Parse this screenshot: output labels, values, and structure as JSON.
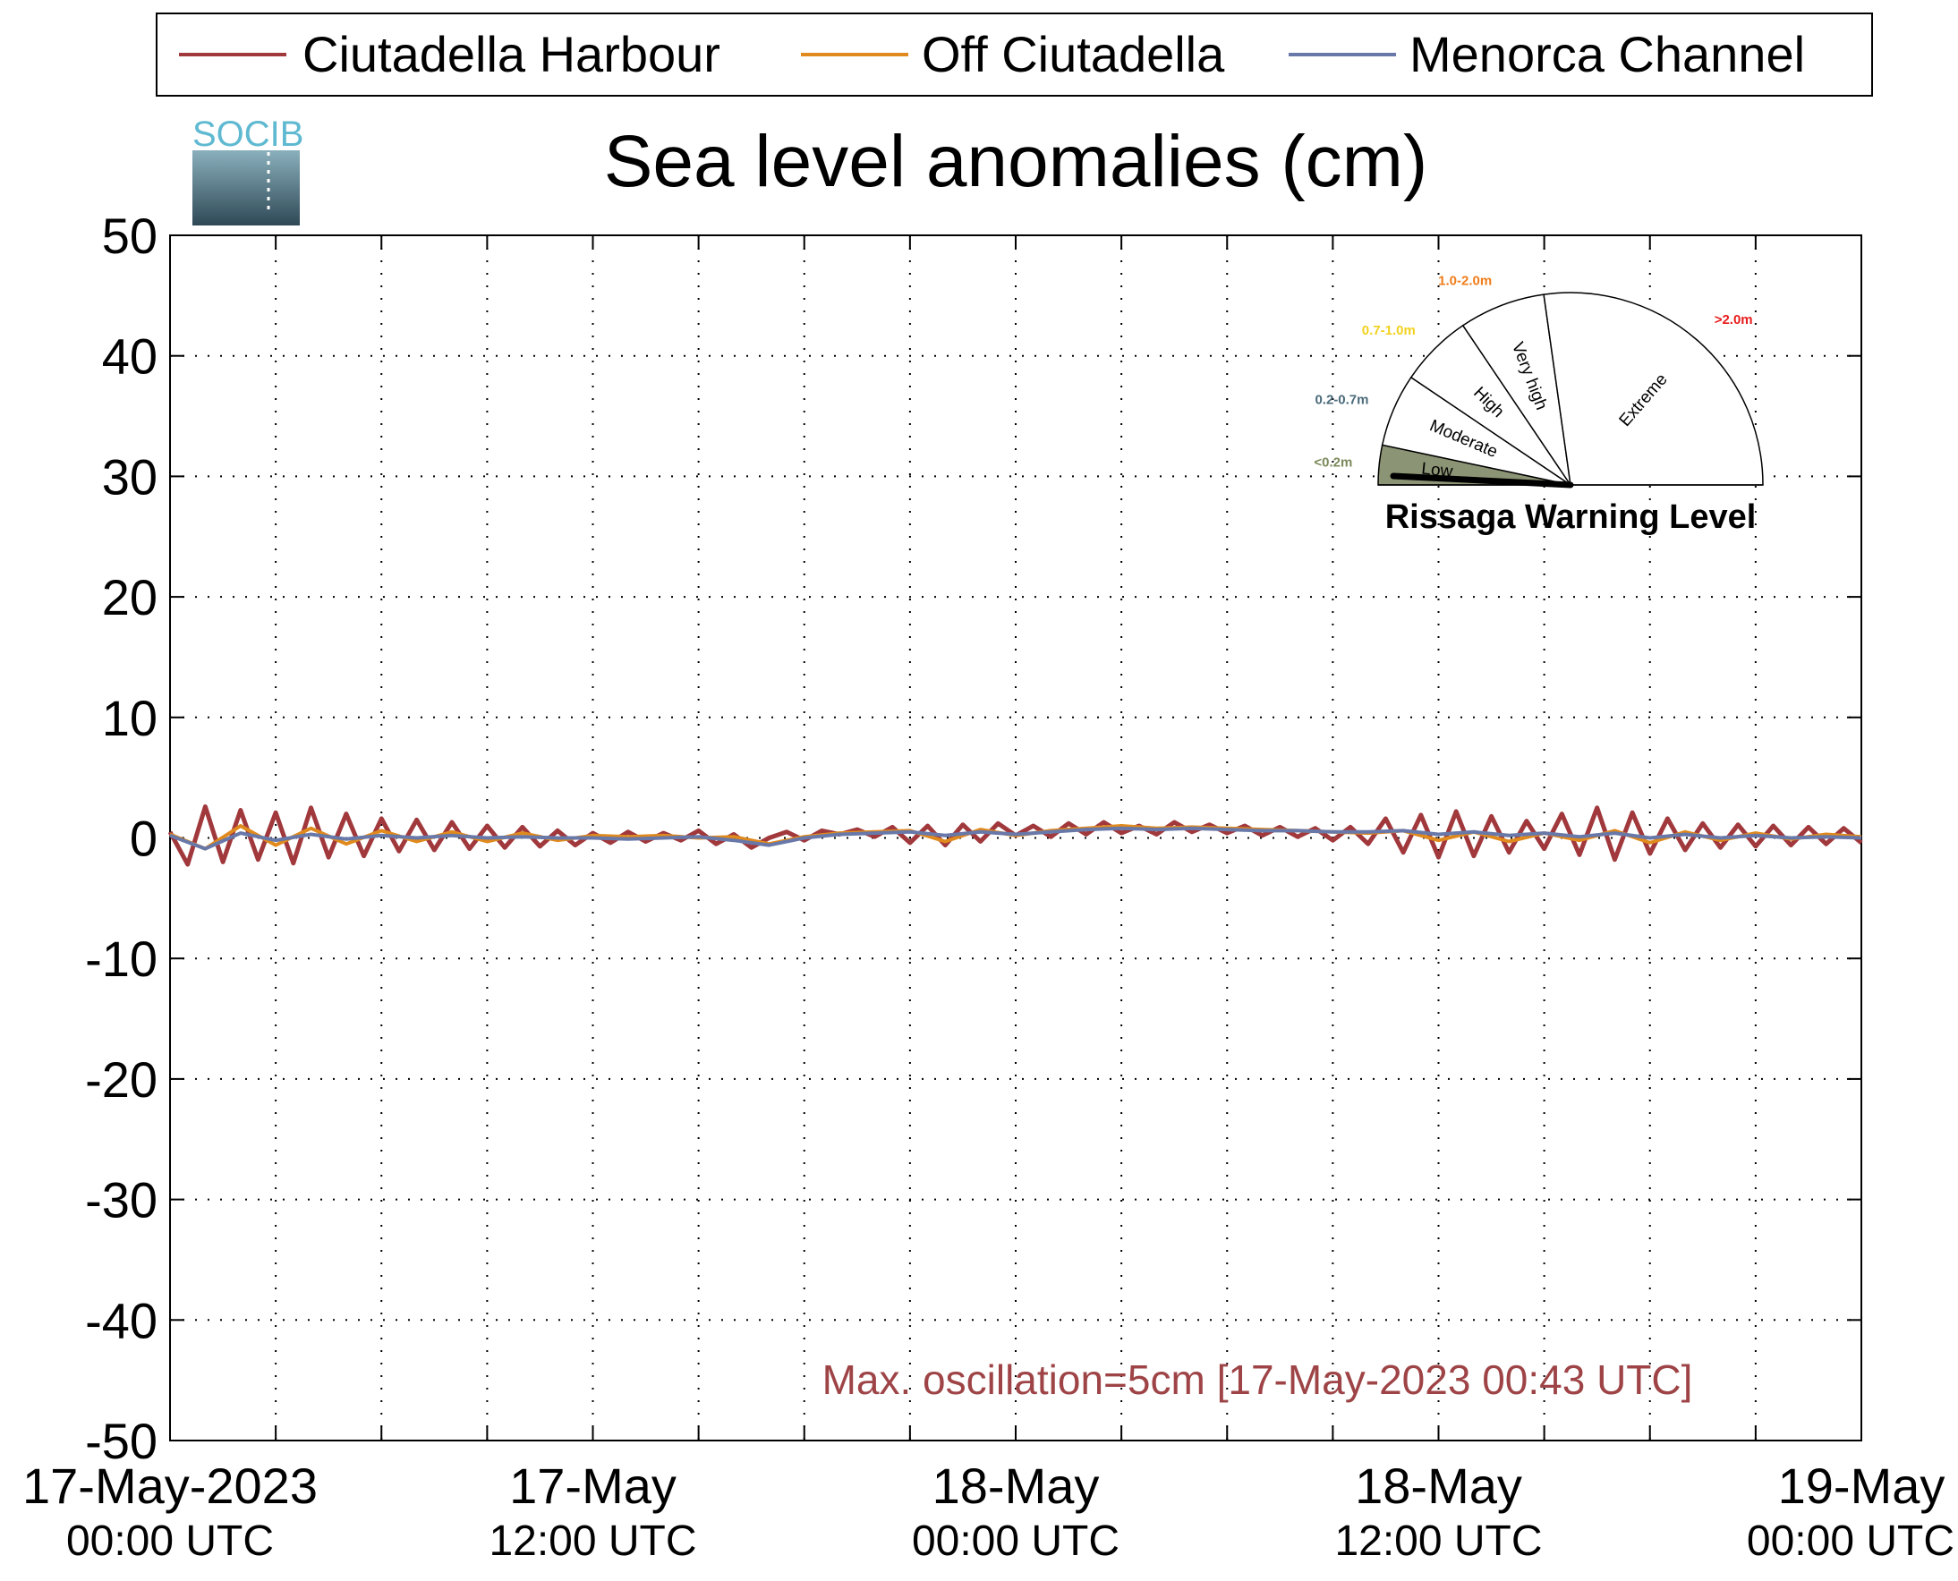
{
  "chart_data": {
    "type": "line",
    "title": "Sea level anomalies (cm)",
    "xlabel": "",
    "ylabel": "",
    "logo_text": "SOCIB",
    "ylim": [
      -50,
      50
    ],
    "y_ticks": [
      50,
      40,
      30,
      20,
      10,
      0,
      -10,
      -20,
      -30,
      -40,
      -50
    ],
    "xlim_hours": [
      0,
      48
    ],
    "x_tick_labels": [
      {
        "hour": 0,
        "line1": "17-May-2023",
        "line2": "00:00 UTC"
      },
      {
        "hour": 12,
        "line1": "17-May",
        "line2": "12:00 UTC"
      },
      {
        "hour": 24,
        "line1": "18-May",
        "line2": "00:00 UTC"
      },
      {
        "hour": 36,
        "line1": "18-May",
        "line2": "12:00 UTC"
      },
      {
        "hour": 48,
        "line1": "19-May",
        "line2": "00:00 UTC"
      }
    ],
    "grid": true,
    "legend_position": "top",
    "series": [
      {
        "name": "Ciutadella Harbour",
        "color": "#a0383c",
        "x": [
          0,
          0.5,
          1,
          1.5,
          2,
          2.5,
          3,
          3.5,
          4,
          4.5,
          5,
          5.5,
          6,
          6.5,
          7,
          7.5,
          8,
          8.5,
          9,
          9.5,
          10,
          10.5,
          11,
          11.5,
          12,
          12.5,
          13,
          13.5,
          14,
          14.5,
          15,
          15.5,
          16,
          16.5,
          17,
          17.5,
          18,
          18.5,
          19,
          19.5,
          20,
          20.5,
          21,
          21.5,
          22,
          22.5,
          23,
          23.5,
          24,
          24.5,
          25,
          25.5,
          26,
          26.5,
          27,
          27.5,
          28,
          28.5,
          29,
          29.5,
          30,
          30.5,
          31,
          31.5,
          32,
          32.5,
          33,
          33.5,
          34,
          34.5,
          35,
          35.5,
          36,
          36.5,
          37,
          37.5,
          38,
          38.5,
          39,
          39.5,
          40,
          40.5,
          41,
          41.5,
          42,
          42.5,
          43,
          43.5,
          44,
          44.5,
          45,
          45.5,
          46,
          46.5,
          47,
          47.5,
          48
        ],
        "y": [
          0.5,
          -2.2,
          2.6,
          -2.0,
          2.3,
          -1.8,
          2.1,
          -2.1,
          2.5,
          -1.6,
          2.0,
          -1.5,
          1.6,
          -1.1,
          1.5,
          -1.0,
          1.3,
          -0.9,
          1.0,
          -0.8,
          0.9,
          -0.7,
          0.6,
          -0.6,
          0.4,
          -0.4,
          0.5,
          -0.3,
          0.4,
          -0.2,
          0.6,
          -0.5,
          0.3,
          -0.8,
          0.0,
          0.5,
          -0.2,
          0.6,
          0.3,
          0.7,
          0.1,
          0.9,
          -0.4,
          1.0,
          -0.6,
          1.1,
          -0.3,
          1.2,
          0.2,
          1.0,
          0.1,
          1.2,
          0.3,
          1.3,
          0.4,
          1.0,
          0.3,
          1.3,
          0.5,
          1.1,
          0.4,
          1.0,
          0.2,
          0.9,
          0.1,
          0.8,
          -0.2,
          0.9,
          -0.5,
          1.6,
          -1.2,
          1.9,
          -1.6,
          2.2,
          -1.5,
          1.8,
          -1.2,
          1.4,
          -0.9,
          2.0,
          -1.4,
          2.5,
          -1.8,
          2.1,
          -1.3,
          1.6,
          -1.0,
          1.2,
          -0.8,
          1.1,
          -0.7,
          1.0,
          -0.6,
          0.9,
          -0.5,
          0.8,
          -0.4
        ]
      },
      {
        "name": "Off Ciutadella",
        "color": "#e08a1e",
        "x": [
          0,
          1,
          2,
          3,
          4,
          5,
          6,
          7,
          8,
          9,
          10,
          11,
          12,
          13,
          14,
          15,
          16,
          17,
          18,
          19,
          20,
          21,
          22,
          23,
          24,
          25,
          26,
          27,
          28,
          29,
          30,
          31,
          32,
          33,
          34,
          35,
          36,
          37,
          38,
          39,
          40,
          41,
          42,
          43,
          44,
          45,
          46,
          47,
          48
        ],
        "y": [
          0.3,
          -0.9,
          1.0,
          -0.6,
          0.8,
          -0.5,
          0.6,
          -0.3,
          0.5,
          -0.3,
          0.4,
          -0.2,
          0.2,
          0.1,
          0.2,
          0.0,
          0.1,
          -0.5,
          0.1,
          0.4,
          0.5,
          0.6,
          -0.3,
          0.7,
          0.2,
          0.6,
          0.8,
          1.0,
          0.8,
          0.9,
          0.8,
          0.7,
          0.6,
          0.5,
          0.4,
          0.6,
          -0.2,
          0.5,
          -0.3,
          0.4,
          -0.2,
          0.6,
          -0.4,
          0.5,
          -0.2,
          0.4,
          -0.1,
          0.3,
          0.1
        ]
      },
      {
        "name": "Menorca Channel",
        "color": "#6878a8",
        "x": [
          0,
          1,
          2,
          3,
          4,
          5,
          6,
          7,
          8,
          9,
          10,
          11,
          12,
          13,
          14,
          15,
          16,
          17,
          18,
          19,
          20,
          21,
          22,
          23,
          24,
          25,
          26,
          27,
          28,
          29,
          30,
          31,
          32,
          33,
          34,
          35,
          36,
          37,
          38,
          39,
          40,
          41,
          42,
          43,
          44,
          45,
          46,
          47,
          48
        ],
        "y": [
          0.2,
          -0.9,
          0.4,
          -0.2,
          0.3,
          -0.1,
          0.2,
          0.0,
          0.2,
          0.0,
          0.1,
          0.0,
          0.0,
          -0.1,
          0.0,
          0.1,
          -0.2,
          -0.6,
          0.0,
          0.3,
          0.4,
          0.5,
          0.2,
          0.5,
          0.3,
          0.5,
          0.7,
          0.8,
          0.7,
          0.8,
          0.7,
          0.6,
          0.6,
          0.5,
          0.5,
          0.6,
          0.3,
          0.5,
          0.2,
          0.4,
          0.1,
          0.4,
          0.0,
          0.3,
          0.0,
          0.2,
          0.0,
          0.1,
          0.0
        ]
      }
    ],
    "annotation": {
      "text": "Max. oscillation=5cm [17-May-2023 00:43 UTC]",
      "color": "#9e4447"
    }
  },
  "gauge": {
    "title": "Rissaga Warning Level",
    "current_level": "Low",
    "sectors": [
      {
        "label": "Low",
        "range": "<0.2m",
        "range_color": "#7a8a5a",
        "fill": "#8b9474",
        "active": true
      },
      {
        "label": "Moderate",
        "range": "0.2-0.7m",
        "range_color": "#4a6a7a",
        "fill": "#ffffff",
        "active": false
      },
      {
        "label": "High",
        "range": "0.7-1.0m",
        "range_color": "#f2d21e",
        "fill": "#ffffff",
        "active": false
      },
      {
        "label": "Very high",
        "range": "1.0-2.0m",
        "range_color": "#f07d1a",
        "fill": "#ffffff",
        "active": false
      },
      {
        "label": "Extreme",
        "range": ">2.0m",
        "range_color": "#e81c1c",
        "fill": "#ffffff",
        "active": false
      }
    ]
  }
}
